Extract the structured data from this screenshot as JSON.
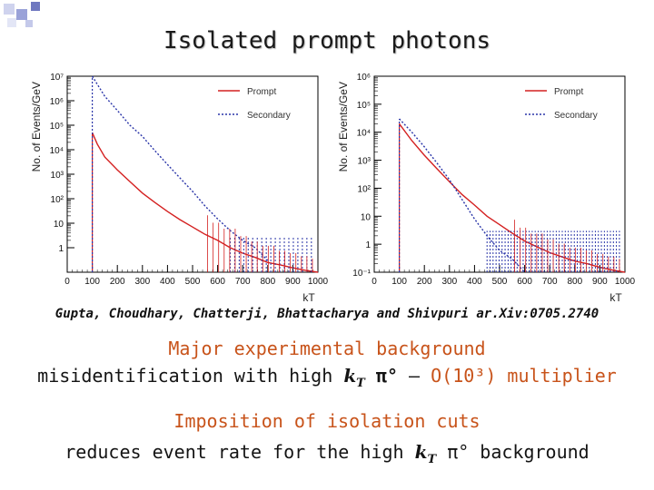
{
  "slide": {
    "title": "Isolated prompt photons",
    "citation": "Gupta, Choudhary, Chatterji, Bhattacharya and Shivpuri ar.Xiv:0705.2740",
    "line1": "Major experimental background",
    "line2_prefix": "misidentification with high",
    "line2_kt": "k",
    "line2_kt_sub": "T",
    "line2_pi": "π°",
    "line2_dash": "–",
    "line2_multiplier": "O(10³) multiplier",
    "line3": "Imposition of isolation cuts",
    "line4_prefix": "reduces event rate for the high",
    "line4_kt": "k",
    "line4_kt_sub": "T",
    "line4_suffix": "π° background"
  },
  "colors": {
    "prompt": "#d42020",
    "secondary": "#2a35a8",
    "orange_text": "#c8531a",
    "deco_square": "#b8bde0",
    "deco_square_dark": "#5560b0"
  },
  "chart_data": [
    {
      "type": "line",
      "title": "",
      "xlabel": "k_T",
      "ylabel": "No. of Events/GeV",
      "yscale": "log",
      "xlim": [
        0,
        1000
      ],
      "ylim": [
        0.1,
        10000000
      ],
      "xticks": [
        "0",
        "100",
        "200",
        "300",
        "400",
        "500",
        "600",
        "700",
        "800",
        "900",
        "1000"
      ],
      "yticks": [
        "1",
        "10",
        "10²",
        "10³",
        "10⁴",
        "10⁵",
        "10⁶",
        "10⁷"
      ],
      "yticks_log": [
        0,
        1,
        2,
        3,
        4,
        5,
        6,
        7
      ],
      "legend_position": "top-right",
      "series": [
        {
          "name": "Prompt",
          "style": "solid",
          "x": [
            100,
            120,
            150,
            200,
            250,
            300,
            350,
            400,
            450,
            500,
            550,
            600,
            650,
            700,
            750,
            800,
            850,
            900,
            950,
            1000
          ],
          "y": [
            50000,
            17000,
            5000,
            1500,
            500,
            170,
            70,
            30,
            14,
            7,
            3.5,
            2,
            1,
            0.6,
            0.4,
            0.25,
            0.2,
            0.15,
            0.12,
            0.1
          ]
        },
        {
          "name": "Secondary",
          "style": "dashed",
          "x": [
            100,
            150,
            200,
            250,
            300,
            350,
            400,
            450,
            500,
            550,
            600,
            650,
            700,
            750,
            800
          ],
          "y": [
            10000000,
            1500000,
            400000,
            100000,
            35000,
            9000,
            2500,
            700,
            200,
            50,
            15,
            5,
            2,
            1,
            0.3
          ]
        }
      ]
    },
    {
      "type": "line",
      "title": "",
      "xlabel": "k_T",
      "ylabel": "No. of Events/GeV",
      "yscale": "log",
      "xlim": [
        0,
        1000
      ],
      "ylim": [
        0.1,
        1000000
      ],
      "xticks": [
        "0",
        "100",
        "200",
        "300",
        "400",
        "500",
        "600",
        "700",
        "800",
        "900",
        "1000"
      ],
      "yticks": [
        "10⁻¹",
        "1",
        "10",
        "10²",
        "10³",
        "10⁴",
        "10⁵",
        "10⁶"
      ],
      "yticks_log": [
        -1,
        0,
        1,
        2,
        3,
        4,
        5,
        6
      ],
      "legend_position": "top-right",
      "series": [
        {
          "name": "Prompt",
          "style": "solid",
          "x": [
            100,
            150,
            200,
            250,
            300,
            350,
            400,
            450,
            500,
            550,
            600,
            650,
            700,
            750,
            800,
            850,
            900,
            950,
            1000
          ],
          "y": [
            20000,
            5000,
            1500,
            500,
            170,
            60,
            25,
            10,
            5,
            2.5,
            1.3,
            0.8,
            0.5,
            0.35,
            0.25,
            0.2,
            0.15,
            0.12,
            0.1
          ]
        },
        {
          "name": "Secondary",
          "style": "dashed",
          "x": [
            100,
            150,
            200,
            250,
            300,
            350,
            400,
            450,
            500,
            550,
            600
          ],
          "y": [
            30000,
            10000,
            3000,
            800,
            200,
            40,
            8,
            2,
            0.6,
            0.3,
            0.1
          ]
        }
      ]
    }
  ]
}
